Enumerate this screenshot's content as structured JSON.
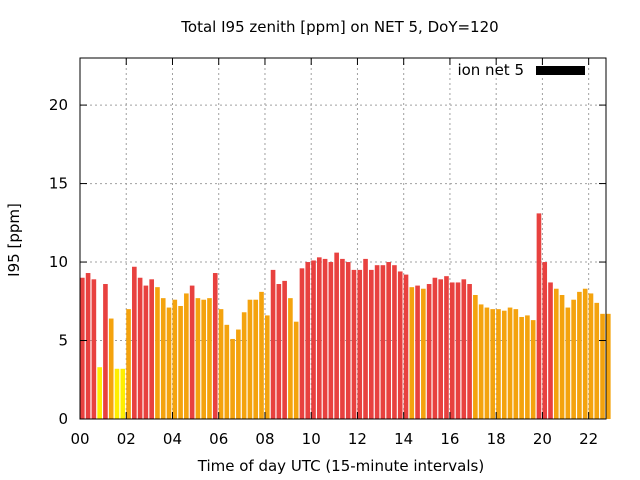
{
  "chart_data": {
    "type": "bar",
    "title": "Total I95 zenith [ppm] on NET 5, DoY=120",
    "xlabel": "Time of day UTC (15-minute intervals)",
    "ylabel": "I95 [ppm]",
    "xlim": [
      0,
      22.75
    ],
    "ylim": [
      0,
      23
    ],
    "x_ticks": [
      "00",
      "02",
      "04",
      "06",
      "08",
      "10",
      "12",
      "14",
      "16",
      "18",
      "20",
      "22"
    ],
    "y_ticks": [
      "0",
      "5",
      "10",
      "15",
      "20"
    ],
    "grid": true,
    "legend": {
      "placement": "top-right",
      "entries": [
        {
          "name": "ion net 5",
          "color": "#000000"
        }
      ]
    },
    "colors": {
      "high": "#e8413f",
      "medium": "#f4a30e",
      "low": "#ffee00"
    },
    "bar_interval_hours": 0.25,
    "values": [
      9.0,
      9.3,
      8.9,
      3.3,
      8.6,
      6.4,
      3.2,
      3.2,
      7.0,
      9.7,
      9.0,
      8.5,
      8.9,
      8.4,
      7.7,
      7.1,
      7.6,
      7.2,
      8.0,
      8.5,
      7.7,
      7.6,
      7.7,
      9.3,
      7.0,
      6.0,
      5.1,
      5.7,
      6.8,
      7.6,
      7.6,
      8.1,
      6.6,
      9.5,
      8.6,
      8.8,
      7.7,
      6.2,
      9.6,
      10.0,
      10.1,
      10.3,
      10.2,
      10.0,
      10.6,
      10.2,
      10.0,
      9.5,
      9.5,
      10.2,
      9.5,
      9.8,
      9.8,
      10.0,
      9.8,
      9.4,
      9.2,
      8.4,
      8.5,
      8.3,
      8.6,
      9.0,
      8.9,
      9.1,
      8.7,
      8.7,
      8.9,
      8.6,
      7.9,
      7.3,
      7.1,
      7.0,
      7.0,
      6.9,
      7.1,
      7.0,
      6.5,
      6.6,
      6.3,
      13.1,
      10.0,
      8.7,
      8.3,
      7.9,
      7.1,
      7.6,
      8.1,
      8.3,
      8.0,
      7.4,
      6.7,
      6.7
    ]
  }
}
